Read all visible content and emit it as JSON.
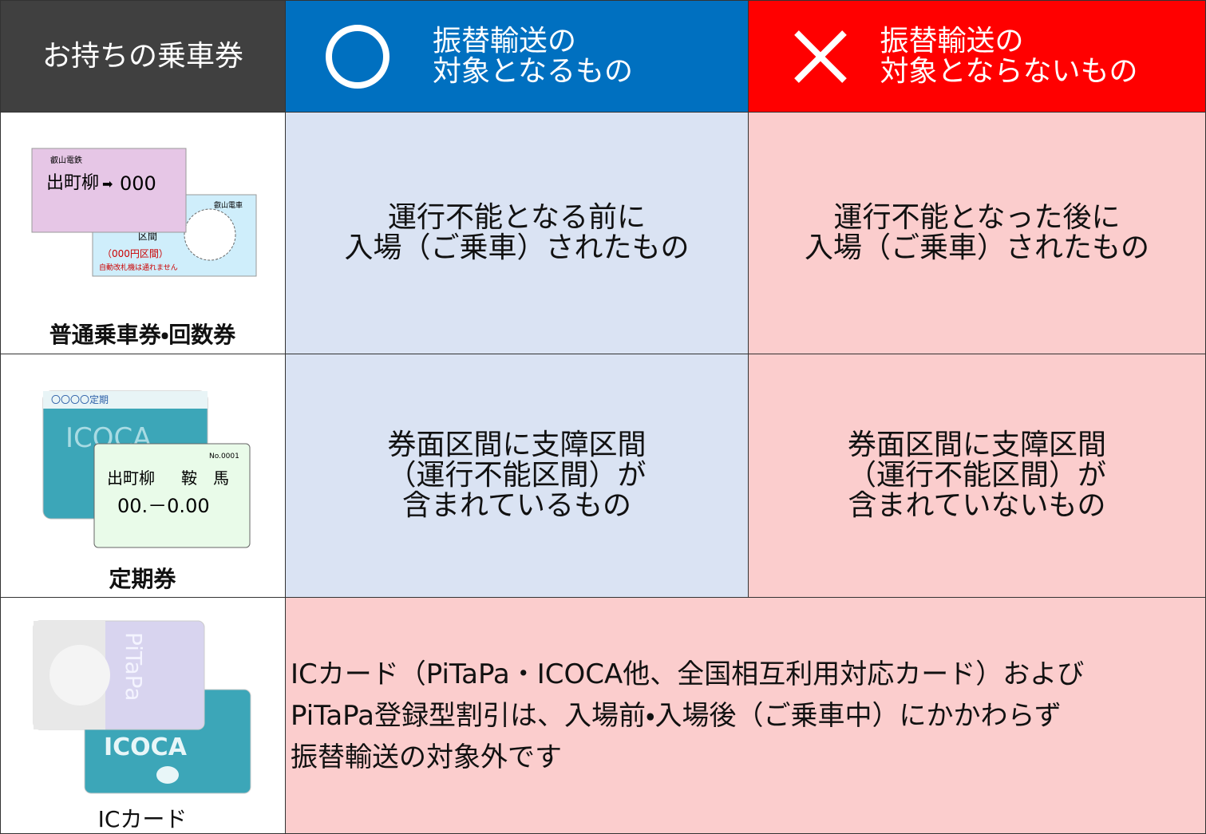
{
  "header": {
    "ticket_col": "お持ちの乗車券",
    "eligible": [
      "振替輸送の",
      "対象となるもの"
    ],
    "not_eligible": [
      "振替輸送の",
      "対象とならないもの"
    ]
  },
  "rows": [
    {
      "label": "普通乗車券・回数券",
      "eligible": [
        "運行不能となる前に",
        "入場（ご乗車）されたもの"
      ],
      "not_eligible": [
        "運行不能となった後に",
        "入場（ご乗車）されたもの"
      ]
    },
    {
      "label": "定期券",
      "eligible": [
        "券面区間に支障区間",
        "（運行不能区間）が",
        "含まれているもの"
      ],
      "not_eligible": [
        "券面区間に支障区間",
        "（運行不能区間）が",
        "含まれていないもの"
      ]
    },
    {
      "label": "ICカード",
      "note": [
        "ICカード（PiTaPa・ICOCA他、全国相互利用対応カード）および",
        "PiTaPa登録型割引は、入場前・入場後（ご乗車中）にかかわらず",
        "振替輸送の対象外です"
      ]
    }
  ],
  "illustrations": {
    "ticket": {
      "company": "叡山電鉄",
      "from": "出町柳",
      "fare": "000",
      "section": "区間",
      "fare_note": "（000円区間）",
      "warning": "自動改札機は通れません",
      "company2": "叡山電車"
    },
    "pass": {
      "card_title": "〇〇〇〇定期",
      "card_logo": "ICOCA",
      "from": "出町柳",
      "to": "鞍　馬",
      "period": "00.－0.00",
      "number": "No.0001"
    },
    "ic": {
      "pitapa": "PiTaPa",
      "icoca": "ICOCA"
    }
  }
}
